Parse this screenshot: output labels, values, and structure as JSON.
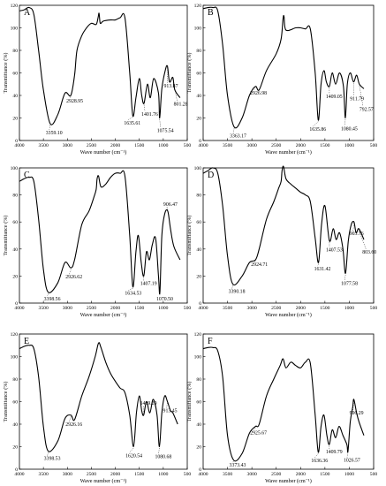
{
  "chart_data": [
    {
      "type": "line",
      "panel_label": "A",
      "xlabel": "Wave number (cm⁻¹)",
      "ylabel": "Transmittance (%)",
      "xlim": [
        4000,
        500
      ],
      "ylim": [
        0,
        120
      ],
      "x_ticks": [
        "4000",
        "3500",
        "3000",
        "2500",
        "2000",
        "1500",
        "1000",
        "500"
      ],
      "y_ticks": [
        "0",
        "20",
        "40",
        "60",
        "80",
        "100",
        "120"
      ],
      "series": [
        {
          "x": [
            4000,
            3900,
            3800,
            3700,
            3600,
            3500,
            3359.1,
            3200,
            3050,
            2928.95,
            2850,
            2800,
            2700,
            2600,
            2500,
            2400,
            2360,
            2340,
            2320,
            2300,
            2250,
            2100,
            2000,
            1900,
            1800,
            1700,
            1635.61,
            1570,
            1500,
            1450,
            1401.76,
            1330,
            1270,
            1200,
            1100,
            1075.54,
            1030,
            960,
            913.87,
            870,
            801.28,
            760,
            650
          ],
          "y": [
            115,
            116,
            118,
            112,
            80,
            45,
            15,
            23,
            42,
            40,
            58,
            80,
            93,
            100,
            104,
            103,
            109,
            113,
            105,
            104,
            106,
            107,
            107,
            109,
            109,
            60,
            22,
            38,
            55,
            40,
            33,
            50,
            38,
            55,
            42,
            20,
            46,
            62,
            66,
            52,
            56,
            45,
            38
          ]
        }
      ],
      "annotations": [
        {
          "label": "3359.10",
          "x": 3359.1,
          "y": 15
        },
        {
          "label": "2928.95",
          "x": 2928.95,
          "y": 40
        },
        {
          "label": "1635.61",
          "x": 1635.61,
          "y": 22
        },
        {
          "label": "1401.76",
          "x": 1401.76,
          "y": 33
        },
        {
          "label": "1075.54",
          "x": 1075.54,
          "y": 20
        },
        {
          "label": "913.87",
          "x": 913.87,
          "y": 66
        },
        {
          "label": "801.28",
          "x": 801.28,
          "y": 56
        }
      ]
    },
    {
      "type": "line",
      "panel_label": "B",
      "xlabel": "Wave number (cm⁻¹)",
      "ylabel": "Transmittance (%)",
      "xlim": [
        4000,
        500
      ],
      "ylim": [
        0,
        120
      ],
      "x_ticks": [
        "4000",
        "3500",
        "3000",
        "2500",
        "2000",
        "1500",
        "1000",
        "500"
      ],
      "y_ticks": [
        "0",
        "20",
        "40",
        "60",
        "80",
        "100",
        "120"
      ],
      "series": [
        {
          "x": [
            4000,
            3900,
            3800,
            3700,
            3600,
            3500,
            3363.17,
            3200,
            3050,
            2926.98,
            2850,
            2700,
            2500,
            2400,
            2360,
            2340,
            2300,
            2100,
            2000,
            1900,
            1800,
            1700,
            1635.86,
            1580,
            1520,
            1470,
            1409.05,
            1350,
            1280,
            1200,
            1120,
            1080.45,
            1040,
            980,
            911.79,
            850,
            792.57,
            700
          ],
          "y": [
            117,
            118,
            118,
            115,
            85,
            40,
            12,
            20,
            40,
            48,
            45,
            62,
            77,
            90,
            108,
            110,
            98,
            100,
            100,
            99,
            99,
            60,
            18,
            50,
            62,
            52,
            48,
            60,
            50,
            60,
            48,
            20,
            50,
            60,
            52,
            58,
            50,
            46
          ]
        }
      ],
      "annotations": [
        {
          "label": "3363.17",
          "x": 3363.17,
          "y": 12
        },
        {
          "label": "2926.98",
          "x": 2926.98,
          "y": 48
        },
        {
          "label": "1635.86",
          "x": 1635.86,
          "y": 18
        },
        {
          "label": "1409.05",
          "x": 1409.05,
          "y": 48
        },
        {
          "label": "1080.45",
          "x": 1080.45,
          "y": 20
        },
        {
          "label": "911.79",
          "x": 911.79,
          "y": 52
        },
        {
          "label": "792.57",
          "x": 792.57,
          "y": 50
        }
      ]
    },
    {
      "type": "line",
      "panel_label": "C",
      "xlabel": "Wave number (cm⁻¹)",
      "ylabel": "Transmittance (%)",
      "xlim": [
        4000,
        500
      ],
      "ylim": [
        0,
        100
      ],
      "x_ticks": [
        "4000",
        "3500",
        "3000",
        "2500",
        "2000",
        "1500",
        "1000",
        "500"
      ],
      "y_ticks": [
        "0",
        "20",
        "40",
        "60",
        "80",
        "100"
      ],
      "series": [
        {
          "x": [
            4000,
            3900,
            3800,
            3700,
            3600,
            3500,
            3398.56,
            3200,
            3050,
            2926.62,
            2850,
            2700,
            2550,
            2450,
            2400,
            2380,
            2350,
            2300,
            2200,
            2100,
            2000,
            1900,
            1800,
            1700,
            1634.53,
            1570,
            1520,
            1460,
            1407.19,
            1350,
            1290,
            1230,
            1160,
            1100,
            1070.5,
            1030,
            970,
            906.47,
            850,
            780,
            650
          ],
          "y": [
            90,
            92,
            93,
            90,
            62,
            25,
            8,
            15,
            30,
            26,
            32,
            58,
            68,
            78,
            84,
            92,
            94,
            86,
            88,
            93,
            96,
            96,
            94,
            50,
            12,
            38,
            50,
            30,
            20,
            38,
            32,
            43,
            48,
            20,
            8,
            50,
            66,
            68,
            55,
            42,
            32
          ]
        }
      ],
      "annotations": [
        {
          "label": "3398.56",
          "x": 3398.56,
          "y": 8
        },
        {
          "label": "2926.62",
          "x": 2926.62,
          "y": 26
        },
        {
          "label": "1634.53",
          "x": 1634.53,
          "y": 12
        },
        {
          "label": "1407.19",
          "x": 1407.19,
          "y": 20
        },
        {
          "label": "1070.50",
          "x": 1070.5,
          "y": 8
        },
        {
          "label": "906.47",
          "x": 906.47,
          "y": 68
        }
      ]
    },
    {
      "type": "line",
      "panel_label": "D",
      "xlabel": "Wave number (cm⁻¹)",
      "ylabel": "Transmittance (%)",
      "xlim": [
        4000,
        500
      ],
      "ylim": [
        0,
        100
      ],
      "x_ticks": [
        "4000",
        "3500",
        "3000",
        "2500",
        "2000",
        "1500",
        "1000",
        "500"
      ],
      "y_ticks": [
        "0",
        "20",
        "40",
        "60",
        "80",
        "100"
      ],
      "series": [
        {
          "x": [
            4000,
            3900,
            3800,
            3700,
            3600,
            3500,
            3390.18,
            3200,
            3050,
            2924.71,
            2850,
            2700,
            2550,
            2450,
            2400,
            2380,
            2350,
            2300,
            2200,
            2100,
            2000,
            1900,
            1800,
            1700,
            1631.42,
            1570,
            1500,
            1407.53,
            1330,
            1270,
            1200,
            1130,
            1077.58,
            1020,
            960,
            903.76,
            860,
            803.6,
            700
          ],
          "y": [
            96,
            98,
            100,
            96,
            72,
            35,
            14,
            20,
            30,
            32,
            40,
            62,
            75,
            85,
            90,
            98,
            101,
            92,
            88,
            85,
            82,
            80,
            75,
            48,
            30,
            58,
            72,
            46,
            55,
            47,
            52,
            40,
            22,
            46,
            58,
            60,
            52,
            55,
            47
          ]
        }
      ],
      "annotations": [
        {
          "label": "3390.18",
          "x": 3390.18,
          "y": 14
        },
        {
          "label": "2924.71",
          "x": 2924.71,
          "y": 32
        },
        {
          "label": "1631.42",
          "x": 1631.42,
          "y": 30
        },
        {
          "label": "1407.53",
          "x": 1407.53,
          "y": 46
        },
        {
          "label": "1077.58",
          "x": 1077.58,
          "y": 22
        },
        {
          "label": "903.76",
          "x": 903.76,
          "y": 60
        },
        {
          "label": "803.60",
          "x": 803.6,
          "y": 55
        }
      ]
    },
    {
      "type": "line",
      "panel_label": "E",
      "xlabel": "Wave number (cm⁻¹)",
      "ylabel": "Transmittance (%)",
      "xlim": [
        4000,
        500
      ],
      "ylim": [
        0,
        120
      ],
      "x_ticks": [
        "4000",
        "3500",
        "3000",
        "2500",
        "2000",
        "1500",
        "1000",
        "500"
      ],
      "y_ticks": [
        "0",
        "20",
        "40",
        "60",
        "80",
        "100",
        "120"
      ],
      "series": [
        {
          "x": [
            4000,
            3900,
            3800,
            3700,
            3600,
            3500,
            3398.53,
            3200,
            3050,
            2926.16,
            2850,
            2700,
            2550,
            2420,
            2350,
            2300,
            2200,
            2100,
            2000,
            1900,
            1800,
            1700,
            1620.54,
            1560,
            1500,
            1450,
            1409.29,
            1350,
            1280,
            1210,
            1130,
            1080.68,
            1030,
            970,
            913.45,
            850,
            800,
            700
          ],
          "y": [
            107,
            109,
            110,
            107,
            82,
            38,
            16,
            25,
            45,
            48,
            44,
            65,
            82,
            100,
            112,
            108,
            95,
            85,
            78,
            72,
            68,
            48,
            20,
            50,
            65,
            52,
            48,
            60,
            50,
            62,
            48,
            20,
            50,
            65,
            60,
            52,
            50,
            40
          ]
        }
      ],
      "annotations": [
        {
          "label": "3398.53",
          "x": 3398.53,
          "y": 16
        },
        {
          "label": "2926.16",
          "x": 2926.16,
          "y": 48
        },
        {
          "label": "1620.54",
          "x": 1620.54,
          "y": 20
        },
        {
          "label": "1409.29",
          "x": 1409.29,
          "y": 48
        },
        {
          "label": "1080.68",
          "x": 1080.68,
          "y": 20
        },
        {
          "label": "913.45",
          "x": 913.45,
          "y": 60
        }
      ]
    },
    {
      "type": "line",
      "panel_label": "F",
      "xlabel": "Wave number (cm⁻¹)",
      "ylabel": "Transmittance (%)",
      "xlim": [
        4000,
        500
      ],
      "ylim": [
        0,
        120
      ],
      "x_ticks": [
        "4000",
        "3500",
        "3000",
        "2500",
        "2000",
        "1500",
        "1000",
        "500"
      ],
      "y_ticks": [
        "0",
        "20",
        "40",
        "60",
        "80",
        "100",
        "120"
      ],
      "series": [
        {
          "x": [
            4000,
            3900,
            3800,
            3700,
            3600,
            3500,
            3373.43,
            3200,
            3050,
            2925.67,
            2850,
            2700,
            2550,
            2420,
            2360,
            2300,
            2200,
            2100,
            2000,
            1900,
            1800,
            1700,
            1636.36,
            1580,
            1520,
            1460,
            1409.79,
            1350,
            1280,
            1210,
            1130,
            1050,
            1026.57,
            980,
            930,
            906.29,
            850,
            800,
            700
          ],
          "y": [
            107,
            108,
            108,
            105,
            82,
            30,
            8,
            14,
            32,
            38,
            40,
            65,
            80,
            92,
            98,
            90,
            95,
            92,
            90,
            95,
            94,
            48,
            15,
            38,
            48,
            30,
            22,
            35,
            28,
            38,
            30,
            22,
            16,
            42,
            55,
            62,
            50,
            42,
            30
          ]
        }
      ],
      "annotations": [
        {
          "label": "3373.43",
          "x": 3373.43,
          "y": 8
        },
        {
          "label": "2925.67",
          "x": 2925.67,
          "y": 38
        },
        {
          "label": "1636.36",
          "x": 1636.36,
          "y": 15
        },
        {
          "label": "1409.79",
          "x": 1409.79,
          "y": 22
        },
        {
          "label": "1026.57",
          "x": 1026.57,
          "y": 16
        },
        {
          "label": "906.29",
          "x": 906.29,
          "y": 62
        }
      ]
    }
  ]
}
